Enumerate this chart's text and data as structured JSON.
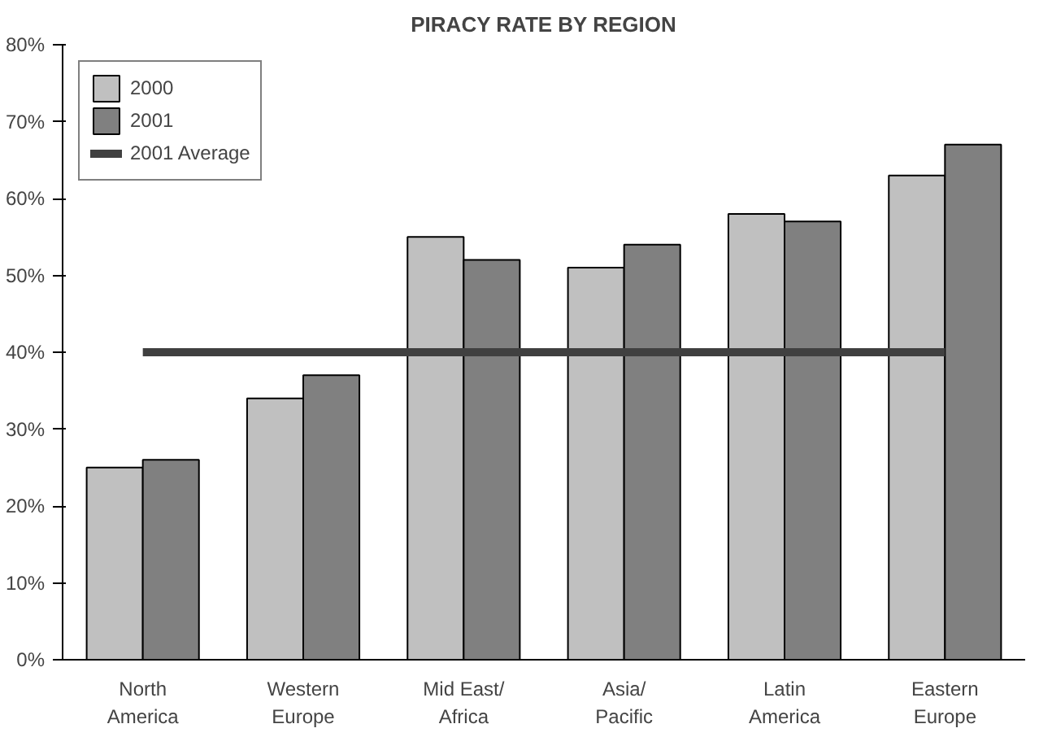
{
  "chart_data": {
    "type": "bar",
    "title": "PIRACY RATE BY REGION",
    "categories": [
      "North\nAmerica",
      "Western\nEurope",
      "Mid East/\nAfrica",
      "Asia/\nPacific",
      "Latin\nAmerica",
      "Eastern\nEurope"
    ],
    "series": [
      {
        "name": "2000",
        "color": "#c0c0c0",
        "values": [
          25,
          34,
          55,
          51,
          58,
          63
        ]
      },
      {
        "name": "2001",
        "color": "#808080",
        "values": [
          26,
          37,
          52,
          54,
          57,
          67
        ]
      },
      {
        "name": "2001 Average",
        "type": "line",
        "color": "#404040",
        "values": [
          40,
          40,
          40,
          40,
          40,
          40
        ]
      }
    ],
    "ylim": [
      0,
      80
    ],
    "yticks": [
      {
        "value": 0,
        "label": "0%"
      },
      {
        "value": 10,
        "label": "10%"
      },
      {
        "value": 20,
        "label": "20%"
      },
      {
        "value": 30,
        "label": "30%"
      },
      {
        "value": 40,
        "label": "40%"
      },
      {
        "value": 50,
        "label": "50%"
      },
      {
        "value": 60,
        "label": "60%"
      },
      {
        "value": 70,
        "label": "70%"
      },
      {
        "value": 80,
        "label": "80%"
      }
    ],
    "legend": "top left",
    "grid": false
  }
}
